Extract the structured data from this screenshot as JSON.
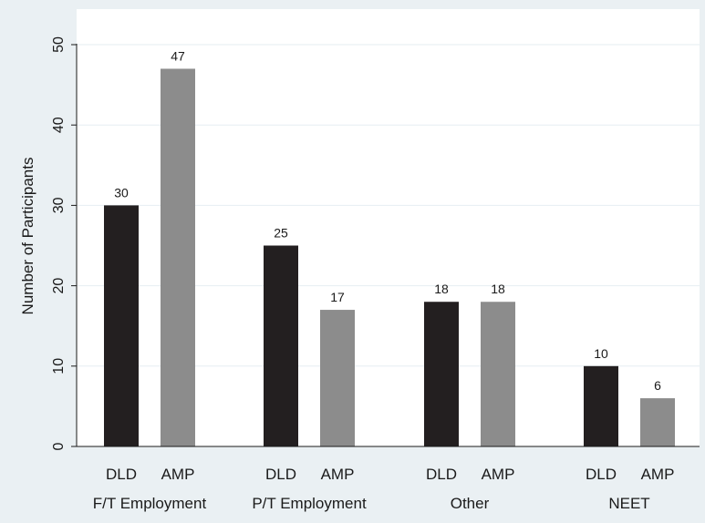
{
  "chart_data": {
    "type": "bar",
    "title": "",
    "ylabel": "Number of Participants",
    "ylim": [
      0,
      50
    ],
    "yticks": [
      0,
      10,
      20,
      30,
      40,
      50
    ],
    "grid": true,
    "legend": "none",
    "groups": [
      {
        "label": "F/T Employment",
        "bars": [
          {
            "label": "DLD",
            "value": 30
          },
          {
            "label": "AMP",
            "value": 47
          }
        ]
      },
      {
        "label": "P/T Employment",
        "bars": [
          {
            "label": "DLD",
            "value": 25
          },
          {
            "label": "AMP",
            "value": 17
          }
        ]
      },
      {
        "label": "Other",
        "bars": [
          {
            "label": "DLD",
            "value": 18
          },
          {
            "label": "AMP",
            "value": 18
          }
        ]
      },
      {
        "label": "NEET",
        "bars": [
          {
            "label": "DLD",
            "value": 10
          },
          {
            "label": "AMP",
            "value": 6
          }
        ]
      }
    ],
    "colors": {
      "DLD": "#231f20",
      "AMP": "#8c8c8c",
      "background": "#eaf0f3",
      "plot_area": "#ffffff",
      "gridline": "#e6eef2"
    }
  }
}
